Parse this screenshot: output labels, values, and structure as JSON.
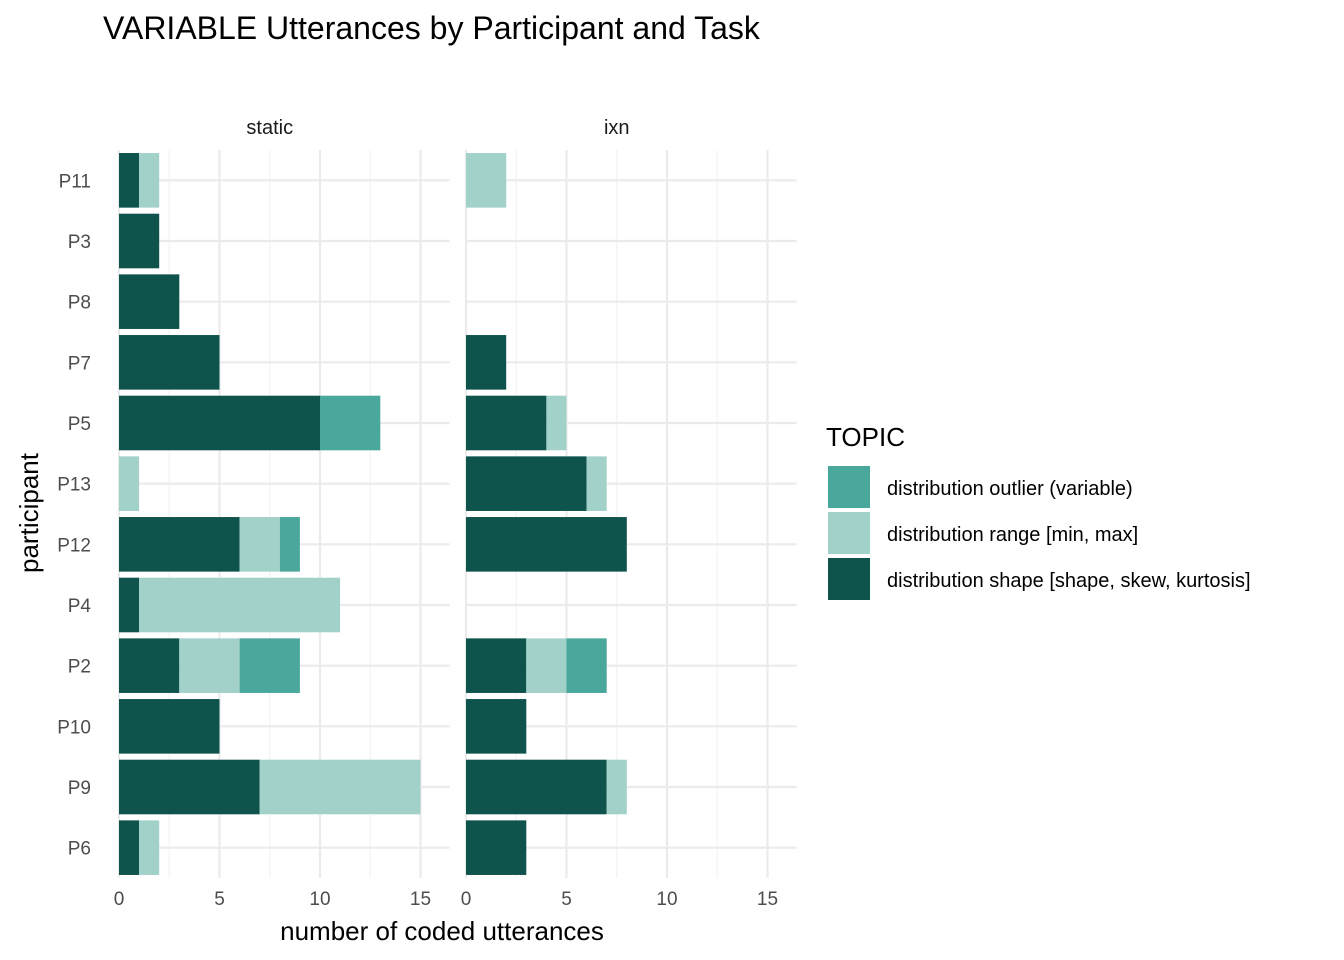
{
  "chart_data": {
    "type": "bar",
    "orientation": "horizontal",
    "stacked": true,
    "title": "VARIABLE Utterances by Participant and Task",
    "xlabel": "number of coded utterances",
    "ylabel": "participant",
    "xlim": [
      0,
      16
    ],
    "x_ticks": [
      0,
      5,
      10,
      15
    ],
    "grid": true,
    "legend_position": "right",
    "categories": [
      "P11",
      "P3",
      "P8",
      "P7",
      "P5",
      "P13",
      "P12",
      "P4",
      "P2",
      "P10",
      "P9",
      "P6"
    ],
    "legend": {
      "title": "TOPIC",
      "entries": [
        {
          "key": "outlier",
          "label": "distribution outlier (variable)",
          "color": "#4aa79c"
        },
        {
          "key": "range",
          "label": "distribution range [min, max]",
          "color": "#a2d1ca"
        },
        {
          "key": "shape",
          "label": "distribution shape [shape, skew, kurtosis]",
          "color": "#0e544c"
        }
      ]
    },
    "stack_order": [
      "shape",
      "range",
      "outlier"
    ],
    "facets": [
      {
        "label": "static",
        "series": {
          "shape": [
            1,
            2,
            3,
            5,
            10,
            0,
            6,
            1,
            3,
            5,
            7,
            1
          ],
          "range": [
            1,
            0,
            0,
            0,
            0,
            1,
            2,
            10,
            3,
            0,
            8,
            1
          ],
          "outlier": [
            0,
            0,
            0,
            0,
            3,
            0,
            1,
            0,
            3,
            0,
            0,
            0
          ]
        }
      },
      {
        "label": "ixn",
        "series": {
          "shape": [
            0,
            0,
            0,
            2,
            4,
            6,
            8,
            0,
            3,
            3,
            7,
            3
          ],
          "range": [
            2,
            0,
            0,
            0,
            1,
            1,
            0,
            0,
            2,
            0,
            1,
            0
          ],
          "outlier": [
            0,
            0,
            0,
            0,
            0,
            0,
            0,
            0,
            2,
            0,
            0,
            0
          ]
        }
      }
    ]
  }
}
